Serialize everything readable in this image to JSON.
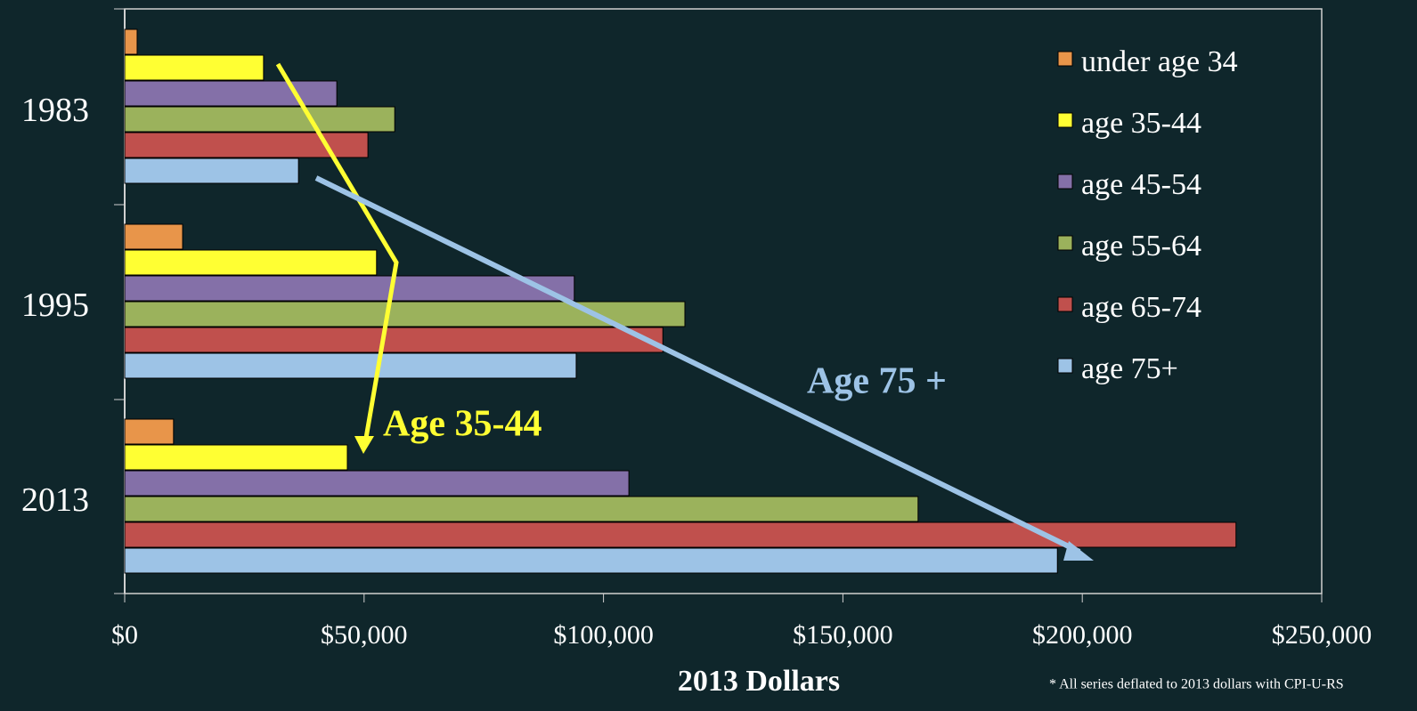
{
  "chart_data": {
    "type": "bar",
    "orientation": "horizontal",
    "x_label": "2013 Dollars",
    "categories": [
      "1983",
      "1995",
      "2013"
    ],
    "series": [
      {
        "name": "under age 34",
        "color": "#e8954a",
        "values": [
          2600,
          12100,
          10200
        ]
      },
      {
        "name": "age 35-44",
        "color": "#ffff33",
        "values": [
          29000,
          52600,
          46500
        ]
      },
      {
        "name": "age 45-54",
        "color": "#8470a8",
        "values": [
          44300,
          93900,
          105300
        ]
      },
      {
        "name": "age 55-64",
        "color": "#9bb25c",
        "values": [
          56400,
          117000,
          165700
        ]
      },
      {
        "name": "age 65-74",
        "color": "#c0504d",
        "values": [
          50800,
          112400,
          232100
        ]
      },
      {
        "name": "age 75+",
        "color": "#9dc3e6",
        "values": [
          36300,
          94300,
          194800
        ]
      }
    ],
    "xlim": [
      0,
      250000
    ],
    "xticks": [
      {
        "value": 0,
        "label": "$0"
      },
      {
        "value": 50000,
        "label": "$50,000"
      },
      {
        "value": 100000,
        "label": "$100,000"
      },
      {
        "value": 150000,
        "label": "$150,000"
      },
      {
        "value": 200000,
        "label": "$200,000"
      },
      {
        "value": 250000,
        "label": "$250,000"
      }
    ],
    "legend": "top-right",
    "annotations": [
      {
        "text": "Age 35-44",
        "color": "#ffff33"
      },
      {
        "text": "Age 75 +",
        "color": "#9dc3e6"
      }
    ],
    "footnote": "* All series deflated to 2013 dollars with CPI-U-RS"
  }
}
